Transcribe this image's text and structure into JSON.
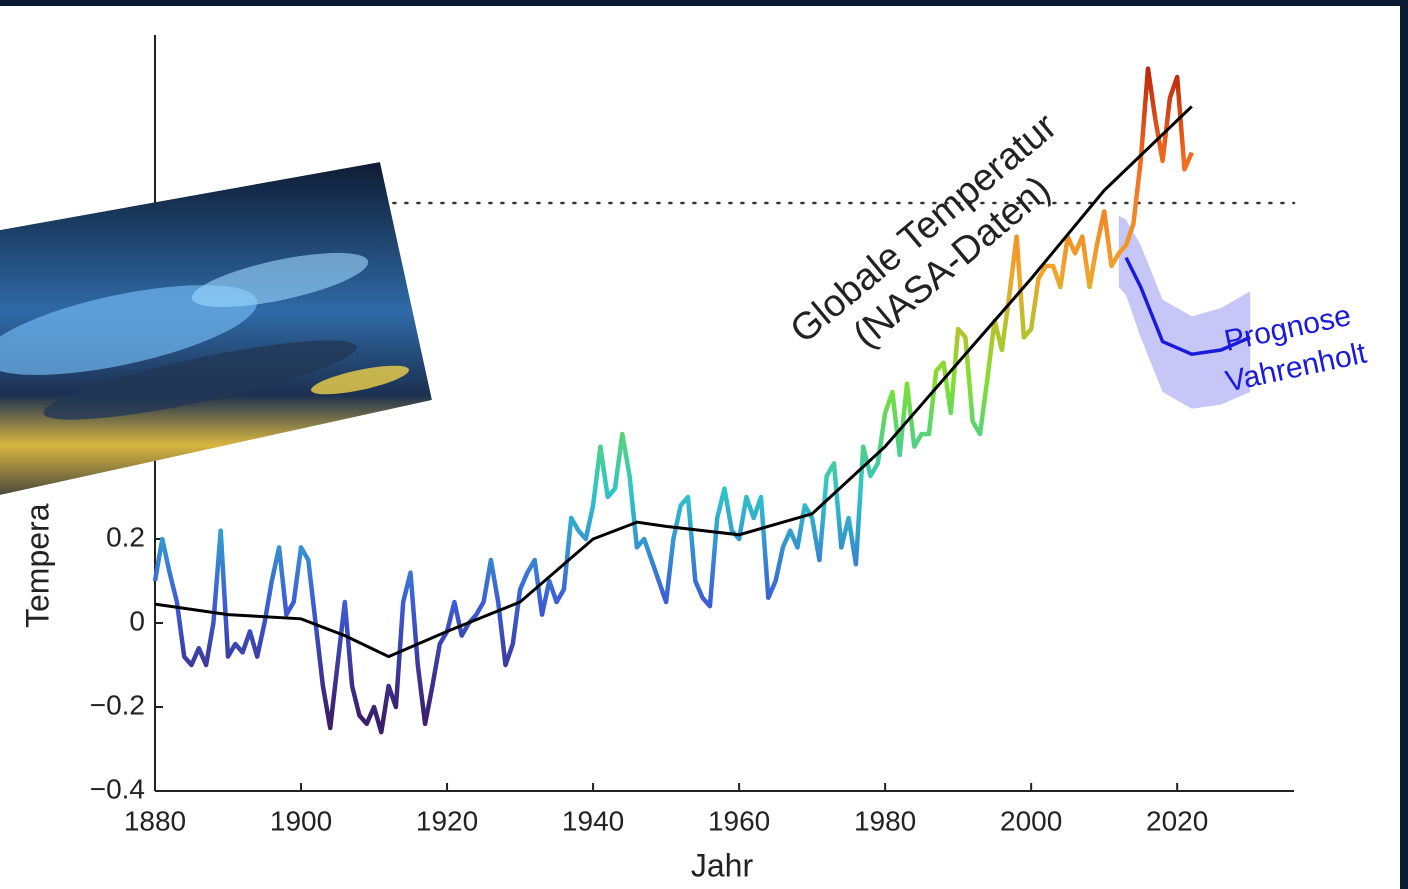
{
  "chart_data": {
    "type": "line",
    "x_label": "Jahr",
    "y_label": "Tempera",
    "xlim": [
      1880,
      2036
    ],
    "ylim": [
      -0.4,
      1.4
    ],
    "xticks": [
      1880,
      1900,
      1920,
      1940,
      1960,
      1980,
      2000,
      2020
    ],
    "yticks": [
      {
        "value": -0.4,
        "label": "−0.4"
      },
      {
        "value": -0.2,
        "label": "−0.2"
      },
      0,
      0.2
    ],
    "reference_line": 1.0,
    "colormap": [
      "#3b1f6e",
      "#3d5bd6",
      "#2ec4c9",
      "#7de02f",
      "#f2a32a",
      "#f26b1f",
      "#b01a0a"
    ],
    "annotation": [
      "Globale Temperatur",
      "(NASA-Daten)"
    ],
    "observations": {
      "x": [
        1880,
        1881,
        1882,
        1883,
        1884,
        1885,
        1886,
        1887,
        1888,
        1889,
        1890,
        1891,
        1892,
        1893,
        1894,
        1895,
        1896,
        1897,
        1898,
        1899,
        1900,
        1901,
        1902,
        1903,
        1904,
        1905,
        1906,
        1907,
        1908,
        1909,
        1910,
        1911,
        1912,
        1913,
        1914,
        1915,
        1916,
        1917,
        1918,
        1919,
        1920,
        1921,
        1922,
        1923,
        1924,
        1925,
        1926,
        1927,
        1928,
        1929,
        1930,
        1931,
        1932,
        1933,
        1934,
        1935,
        1936,
        1937,
        1938,
        1939,
        1940,
        1941,
        1942,
        1943,
        1944,
        1945,
        1946,
        1947,
        1948,
        1949,
        1950,
        1951,
        1952,
        1953,
        1954,
        1955,
        1956,
        1957,
        1958,
        1959,
        1960,
        1961,
        1962,
        1963,
        1964,
        1965,
        1966,
        1967,
        1968,
        1969,
        1970,
        1971,
        1972,
        1973,
        1974,
        1975,
        1976,
        1977,
        1978,
        1979,
        1980,
        1981,
        1982,
        1983,
        1984,
        1985,
        1986,
        1987,
        1988,
        1989,
        1990,
        1991,
        1992,
        1993,
        1994,
        1995,
        1996,
        1997,
        1998,
        1999,
        2000,
        2001,
        2002,
        2003,
        2004,
        2005,
        2006,
        2007,
        2008,
        2009,
        2010,
        2011,
        2012,
        2013,
        2014,
        2015,
        2016,
        2017,
        2018,
        2019,
        2020,
        2021,
        2022
      ],
      "values": [
        0.1,
        0.2,
        0.12,
        0.05,
        -0.08,
        -0.1,
        -0.06,
        -0.1,
        0.0,
        0.22,
        -0.08,
        -0.05,
        -0.07,
        -0.02,
        -0.08,
        0.0,
        0.1,
        0.18,
        0.02,
        0.05,
        0.18,
        0.15,
        0.0,
        -0.15,
        -0.25,
        -0.1,
        0.05,
        -0.15,
        -0.22,
        -0.24,
        -0.2,
        -0.26,
        -0.15,
        -0.2,
        0.05,
        0.12,
        -0.1,
        -0.24,
        -0.15,
        -0.05,
        -0.02,
        0.05,
        -0.03,
        0.0,
        0.02,
        0.05,
        0.15,
        0.05,
        -0.1,
        -0.05,
        0.08,
        0.12,
        0.15,
        0.02,
        0.1,
        0.05,
        0.08,
        0.25,
        0.22,
        0.2,
        0.28,
        0.42,
        0.3,
        0.32,
        0.45,
        0.35,
        0.18,
        0.2,
        0.15,
        0.1,
        0.05,
        0.2,
        0.28,
        0.3,
        0.1,
        0.06,
        0.04,
        0.25,
        0.32,
        0.22,
        0.2,
        0.3,
        0.25,
        0.3,
        0.06,
        0.1,
        0.18,
        0.22,
        0.18,
        0.28,
        0.25,
        0.15,
        0.35,
        0.38,
        0.18,
        0.25,
        0.14,
        0.42,
        0.35,
        0.38,
        0.5,
        0.55,
        0.4,
        0.57,
        0.42,
        0.45,
        0.45,
        0.6,
        0.62,
        0.5,
        0.7,
        0.68,
        0.48,
        0.45,
        0.58,
        0.72,
        0.65,
        0.78,
        0.92,
        0.68,
        0.7,
        0.82,
        0.85,
        0.85,
        0.8,
        0.92,
        0.88,
        0.92,
        0.8,
        0.9,
        0.98,
        0.85,
        0.88,
        0.9,
        0.95,
        1.1,
        1.32,
        1.2,
        1.1,
        1.25,
        1.3,
        1.08,
        1.12
      ]
    },
    "trend": {
      "color": "#000000",
      "x": [
        1880,
        1890,
        1900,
        1906,
        1912,
        1920,
        1930,
        1940,
        1946,
        1950,
        1960,
        1970,
        1980,
        1990,
        2000,
        2010,
        2022
      ],
      "values": [
        0.045,
        0.02,
        0.01,
        -0.03,
        -0.08,
        -0.02,
        0.05,
        0.2,
        0.24,
        0.23,
        0.21,
        0.26,
        0.42,
        0.62,
        0.82,
        1.03,
        1.23
      ]
    },
    "forecast": {
      "label": [
        "Prognose",
        "Vahrenholt"
      ],
      "color": "#1a1adb",
      "band_color": "#8f8ff0",
      "x": [
        2012,
        2013,
        2015,
        2018,
        2022,
        2026,
        2030
      ],
      "values": [
        null,
        0.87,
        0.8,
        0.67,
        0.64,
        0.65,
        0.68
      ],
      "upper": [
        0.97,
        0.96,
        0.9,
        0.77,
        0.73,
        0.75,
        0.79
      ],
      "lower": [
        0.8,
        0.78,
        0.68,
        0.55,
        0.51,
        0.52,
        0.55
      ]
    }
  }
}
